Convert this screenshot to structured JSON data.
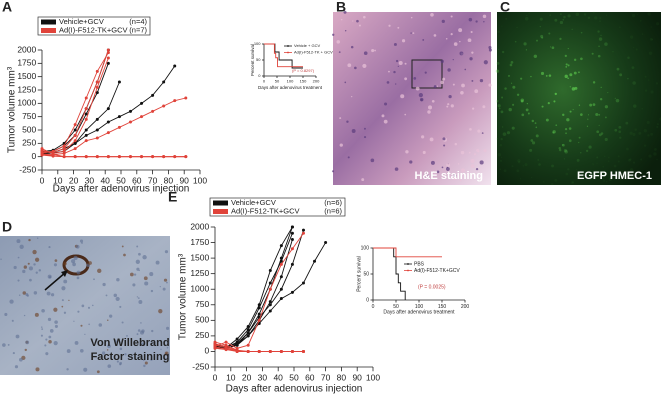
{
  "panel_labels": [
    "A",
    "B",
    "C",
    "D",
    "E"
  ],
  "images": [
    {
      "caption": [
        "H&E staining"
      ]
    },
    {
      "caption": [
        "EGFP HMEC-1"
      ]
    },
    {
      "caption": [
        "Von Willebrand",
        "Factor staining"
      ]
    }
  ],
  "chart_data": [
    {
      "type": "line",
      "xlabel": "Days after adenovirus injection",
      "ylabel": "Tumor volume mm³",
      "xlim": [
        0,
        100
      ],
      "xticks": [
        0,
        10,
        20,
        30,
        40,
        50,
        60,
        70,
        80,
        90,
        100
      ],
      "ylim": [
        -250,
        2000
      ],
      "yticks": [
        -250,
        0,
        250,
        500,
        750,
        1000,
        1250,
        1500,
        1750,
        2000
      ],
      "legend": [
        {
          "name": "Vehicle+GCV",
          "n": "(n=4)",
          "color": "#111111"
        },
        {
          "name": "Ad(I)-F512-TK+GCV",
          "n": "(n=7)",
          "color": "#e0433a"
        }
      ],
      "x": [
        0,
        7,
        14,
        21,
        28,
        35,
        42,
        49,
        56,
        63,
        70,
        77,
        84,
        91
      ],
      "series": [
        {
          "color": "#111111",
          "values": [
            60,
            80,
            150,
            250,
            400,
            500,
            650,
            750,
            850,
            1000,
            1150,
            1400,
            1700,
            null
          ]
        },
        {
          "color": "#111111",
          "values": [
            50,
            70,
            100,
            250,
            500,
            700,
            900,
            1400,
            null,
            null,
            null,
            null,
            null,
            null
          ]
        },
        {
          "color": "#111111",
          "values": [
            80,
            100,
            200,
            400,
            800,
            1200,
            1750,
            null,
            null,
            null,
            null,
            null,
            null,
            null
          ]
        },
        {
          "color": "#111111",
          "values": [
            100,
            120,
            250,
            500,
            900,
            1400,
            2000,
            null,
            null,
            null,
            null,
            null,
            null,
            null
          ]
        },
        {
          "color": "#e0433a",
          "values": [
            90,
            80,
            150,
            400,
            900,
            1400,
            2000,
            null,
            null,
            null,
            null,
            null,
            null,
            null
          ]
        },
        {
          "color": "#e0433a",
          "values": [
            70,
            100,
            200,
            600,
            1100,
            1600,
            1950,
            null,
            null,
            null,
            null,
            null,
            null,
            null
          ]
        },
        {
          "color": "#e0433a",
          "values": [
            120,
            60,
            100,
            300,
            700,
            1300,
            1850,
            null,
            null,
            null,
            null,
            null,
            null,
            null
          ]
        },
        {
          "color": "#e0433a",
          "values": [
            50,
            40,
            60,
            150,
            300,
            350,
            450,
            550,
            650,
            750,
            850,
            950,
            1050,
            1100
          ]
        },
        {
          "color": "#e0433a",
          "values": [
            30,
            10,
            0,
            0,
            0,
            0,
            0,
            0,
            0,
            0,
            0,
            0,
            0,
            0
          ]
        },
        {
          "color": "#e0433a",
          "values": [
            40,
            20,
            0,
            0,
            0,
            0,
            0,
            0,
            0,
            0,
            0,
            0,
            0,
            0
          ]
        },
        {
          "color": "#e0433a",
          "values": [
            150,
            50,
            0,
            0,
            0,
            0,
            0,
            0,
            0,
            0,
            0,
            0,
            0,
            0
          ]
        }
      ]
    },
    {
      "type": "step",
      "xlabel": "Days after adenovirus treatment",
      "ylabel": "Percent survival",
      "annotation": "(P = 0.8297)",
      "xlim": [
        0,
        200
      ],
      "xticks": [
        0,
        50,
        100,
        150,
        200
      ],
      "ylim": [
        0,
        100
      ],
      "yticks": [
        0,
        50,
        100
      ],
      "series": [
        {
          "name": "Vehicle + GCV",
          "color": "#111111",
          "x": [
            0,
            42,
            42,
            58,
            58,
            108,
            108,
            150
          ],
          "values": [
            100,
            100,
            75,
            75,
            50,
            50,
            25,
            25
          ]
        },
        {
          "name": "Ad(I)-F512-TK + GCV",
          "color": "#e0433a",
          "x": [
            0,
            40,
            40,
            45,
            45,
            52,
            52,
            150
          ],
          "values": [
            100,
            100,
            71,
            71,
            57,
            57,
            29,
            29
          ]
        }
      ]
    },
    {
      "type": "line",
      "xlabel": "Days after adenovirus injection",
      "ylabel": "Tumor volume mm³",
      "xlim": [
        0,
        100
      ],
      "xticks": [
        0,
        10,
        20,
        30,
        40,
        50,
        60,
        70,
        80,
        90,
        100
      ],
      "ylim": [
        -250,
        2000
      ],
      "yticks": [
        -250,
        0,
        250,
        500,
        750,
        1000,
        1250,
        1500,
        1750,
        2000
      ],
      "legend": [
        {
          "name": "Vehicle+GCV",
          "n": "(n=6)",
          "color": "#111111"
        },
        {
          "name": "Ad(I)-F512-TK+GCV",
          "n": "(n=6)",
          "color": "#e0433a"
        }
      ],
      "x": [
        0,
        7,
        14,
        21,
        28,
        35,
        42,
        49,
        56,
        63,
        70
      ],
      "series": [
        {
          "color": "#111111",
          "values": [
            100,
            50,
            100,
            300,
            600,
            1000,
            1500,
            2000,
            null,
            null,
            null
          ]
        },
        {
          "color": "#111111",
          "values": [
            80,
            60,
            150,
            350,
            700,
            1100,
            1450,
            1900,
            null,
            null,
            null
          ]
        },
        {
          "color": "#111111",
          "values": [
            120,
            40,
            120,
            250,
            500,
            800,
            1200,
            1800,
            null,
            null,
            null
          ]
        },
        {
          "color": "#111111",
          "values": [
            90,
            70,
            130,
            300,
            550,
            750,
            1000,
            1400,
            1950,
            null,
            null
          ]
        },
        {
          "color": "#111111",
          "values": [
            60,
            50,
            100,
            250,
            450,
            650,
            850,
            950,
            1100,
            1450,
            1750
          ]
        },
        {
          "color": "#111111",
          "values": [
            110,
            60,
            200,
            400,
            750,
            1300,
            1700,
            2000,
            null,
            null,
            null
          ]
        },
        {
          "color": "#e0433a",
          "values": [
            80,
            150,
            50,
            100,
            500,
            1000,
            1400,
            1650,
            1900,
            null,
            null
          ]
        },
        {
          "color": "#e0433a",
          "values": [
            150,
            100,
            20,
            0,
            0,
            0,
            0,
            0,
            0,
            null,
            null
          ]
        },
        {
          "color": "#e0433a",
          "values": [
            120,
            80,
            10,
            0,
            0,
            0,
            0,
            0,
            0,
            null,
            null
          ]
        },
        {
          "color": "#e0433a",
          "values": [
            100,
            60,
            0,
            0,
            0,
            0,
            0,
            0,
            0,
            null,
            null
          ]
        },
        {
          "color": "#e0433a",
          "values": [
            70,
            40,
            0,
            0,
            0,
            0,
            0,
            0,
            0,
            null,
            null
          ]
        },
        {
          "color": "#e0433a",
          "values": [
            50,
            30,
            0,
            0,
            0,
            0,
            0,
            0,
            0,
            null,
            null
          ]
        }
      ]
    },
    {
      "type": "step",
      "xlabel": "Days after adenovirus treatment",
      "ylabel": "Percent survival",
      "annotation": "(P = 0.0025)",
      "xlim": [
        0,
        200
      ],
      "xticks": [
        0,
        50,
        100,
        150,
        200
      ],
      "ylim": [
        0,
        100
      ],
      "yticks": [
        0,
        50,
        100
      ],
      "series": [
        {
          "name": "PBS",
          "color": "#111111",
          "x": [
            0,
            45,
            45,
            50,
            50,
            55,
            55,
            60,
            60,
            70,
            70
          ],
          "values": [
            100,
            100,
            83,
            83,
            50,
            50,
            33,
            33,
            17,
            17,
            0
          ]
        },
        {
          "name": "Ad(I)-F512-TK+GCV",
          "color": "#e0433a",
          "x": [
            0,
            50,
            50,
            150
          ],
          "values": [
            100,
            100,
            83,
            83
          ]
        }
      ]
    }
  ]
}
